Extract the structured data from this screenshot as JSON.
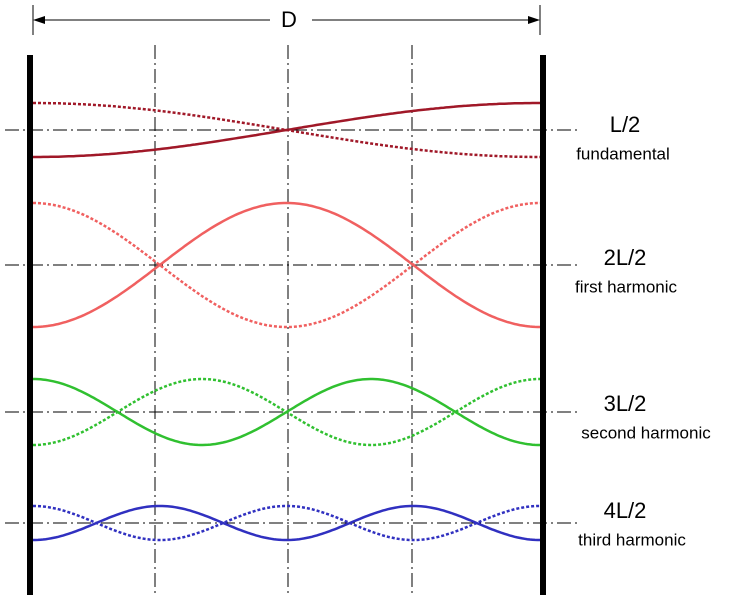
{
  "dimension": "D",
  "modes": [
    {
      "length": "L/2",
      "name": "fundamental"
    },
    {
      "length": "2L/2",
      "name": "first harmonic"
    },
    {
      "length": "3L/2",
      "name": "second harmonic"
    },
    {
      "length": "4L/2",
      "name": "third harmonic"
    }
  ]
}
